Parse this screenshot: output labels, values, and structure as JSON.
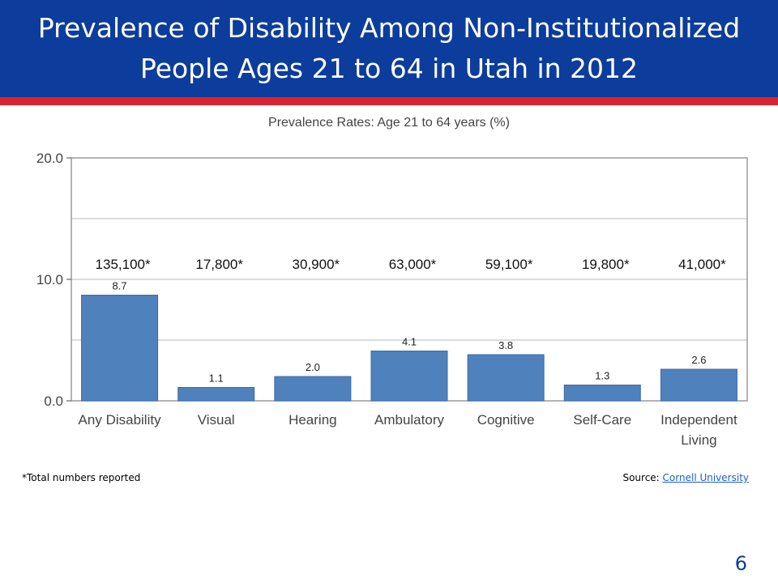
{
  "slide": {
    "title_line1": "Prevalence of Disability Among Non-Institutionalized",
    "title_line2": "People Ages 21 to 64 in Utah in 2012",
    "footnote": "*Total numbers reported",
    "source_label": "Source: ",
    "source_link": "Cornell University",
    "page_number": "6"
  },
  "colors": {
    "header_blue": "#0c3d9c",
    "header_red": "#d9232e",
    "bar": "#4f81bd",
    "gridline": "#c8c8c8"
  },
  "chart_data": {
    "type": "bar",
    "title": "Prevalence Rates: Age 21 to 64 years (%)",
    "categories": [
      "Any Disability",
      "Visual",
      "Hearing",
      "Ambulatory",
      "Cognitive",
      "Self-Care",
      "Independent Living"
    ],
    "category_lines": [
      [
        "Any Disability"
      ],
      [
        "Visual"
      ],
      [
        "Hearing"
      ],
      [
        "Ambulatory"
      ],
      [
        "Cognitive"
      ],
      [
        "Self-Care"
      ],
      [
        "Independent",
        "Living"
      ]
    ],
    "values": [
      8.7,
      1.1,
      2.0,
      4.1,
      3.8,
      1.3,
      2.6
    ],
    "value_labels": [
      "8.7",
      "1.1",
      "2.0",
      "4.1",
      "3.8",
      "1.3",
      "2.6"
    ],
    "totals": [
      "135,100*",
      "17,800*",
      "30,900*",
      "63,000*",
      "59,100*",
      "19,800*",
      "41,000*"
    ],
    "ylim": [
      0,
      20
    ],
    "yticks": [
      0,
      10,
      20
    ],
    "ytick_labels": [
      "0.0",
      "10.0",
      "20.0"
    ],
    "gridlines": [
      5,
      10,
      15
    ],
    "grid": true,
    "xlabel": "",
    "ylabel": ""
  }
}
